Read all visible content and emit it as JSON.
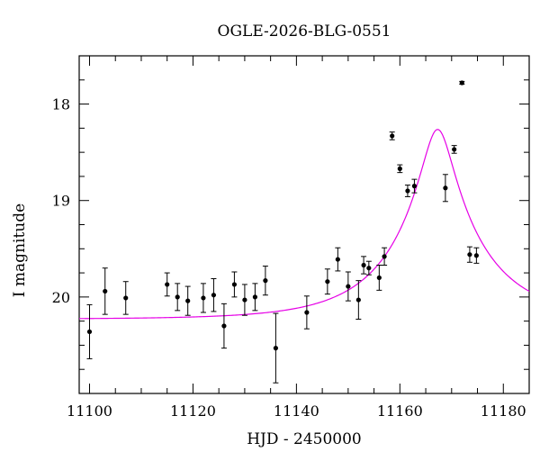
{
  "chart_data": {
    "type": "scatter",
    "title": "OGLE-2026-BLG-0551",
    "xlabel": "HJD - 2450000",
    "ylabel": "I magnitude",
    "xlim": [
      11098,
      11185
    ],
    "ylim": [
      21.0,
      17.5
    ],
    "y_inverted": true,
    "xticks_major": [
      11100,
      11120,
      11140,
      11160,
      11180
    ],
    "yticks_major": [
      18,
      19,
      20
    ],
    "grid": false,
    "legend": "none",
    "colors": {
      "points": "#000000",
      "model": "#e600e6"
    },
    "series": [
      {
        "type": "scatter-errorbar",
        "x": [
          11100.0,
          11103.0,
          11107.0,
          11115.0,
          11117.0,
          11119.0,
          11122.0,
          11124.0,
          11126.0,
          11128.0,
          11130.0,
          11132.0,
          11134.0,
          11136.0,
          11142.0,
          11146.0,
          11148.0,
          11150.0,
          11152.0,
          11153.0,
          11154.0,
          11156.0,
          11157.0,
          11158.5,
          11160.0,
          11161.5,
          11162.8,
          11168.8,
          11170.5,
          11172.0,
          11173.5,
          11174.8
        ],
        "y": [
          20.36,
          19.94,
          20.01,
          19.87,
          20.0,
          20.04,
          20.01,
          19.98,
          20.3,
          19.87,
          20.03,
          20.0,
          19.83,
          20.53,
          20.16,
          19.84,
          19.61,
          19.89,
          20.03,
          19.67,
          19.7,
          19.8,
          19.58,
          18.33,
          18.67,
          18.9,
          18.85,
          18.87,
          18.47,
          17.78,
          19.56,
          19.57
        ],
        "yerr": [
          0.28,
          0.24,
          0.17,
          0.12,
          0.14,
          0.15,
          0.15,
          0.17,
          0.23,
          0.13,
          0.16,
          0.14,
          0.15,
          0.36,
          0.17,
          0.13,
          0.12,
          0.15,
          0.2,
          0.09,
          0.07,
          0.13,
          0.09,
          0.04,
          0.04,
          0.06,
          0.07,
          0.14,
          0.04,
          0.015,
          0.08,
          0.08
        ]
      },
      {
        "type": "line",
        "model": "point-lens",
        "t0": 11167.3,
        "u0": 0.165,
        "tE": 17.0,
        "baseline_mag": 20.23
      }
    ]
  }
}
